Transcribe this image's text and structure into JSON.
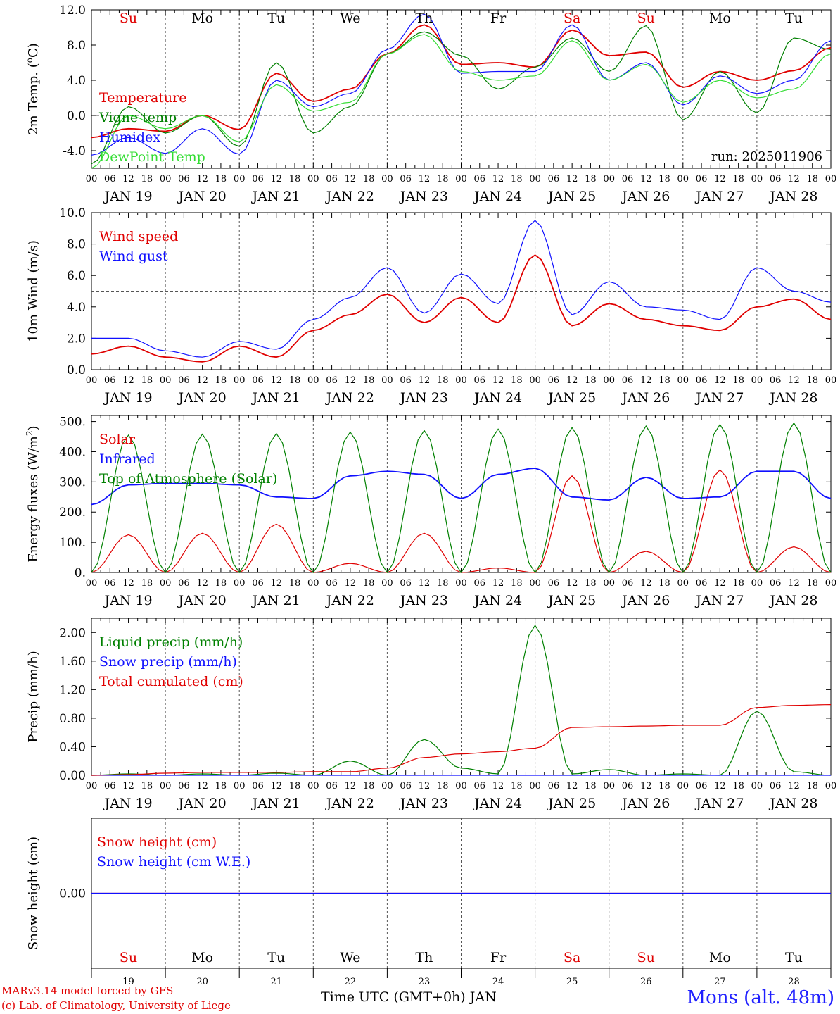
{
  "time_axis": {
    "hour_labels": [
      "00",
      "06",
      "12",
      "18"
    ],
    "final_label": "00",
    "dates": [
      "JAN 19",
      "JAN 20",
      "JAN 21",
      "JAN 22",
      "JAN 23",
      "JAN 24",
      "JAN 25",
      "JAN 26",
      "JAN 27",
      "JAN 28"
    ],
    "day_numbers": [
      "19",
      "20",
      "21",
      "22",
      "23",
      "24",
      "25",
      "26",
      "27",
      "28"
    ],
    "weekdays": [
      {
        "label": "Su",
        "weekend": true
      },
      {
        "label": "Mo",
        "weekend": false
      },
      {
        "label": "Tu",
        "weekend": false
      },
      {
        "label": "We",
        "weekend": false
      },
      {
        "label": "Th",
        "weekend": false
      },
      {
        "label": "Fr",
        "weekend": false
      },
      {
        "label": "Sa",
        "weekend": true
      },
      {
        "label": "Su",
        "weekend": true
      },
      {
        "label": "Mo",
        "weekend": false
      },
      {
        "label": "Tu",
        "weekend": false
      }
    ],
    "x_label": "Time UTC (GMT+0h) JAN"
  },
  "footer": {
    "credit_line1": "MARv3.14 model forced by GFS",
    "credit_line2": "(c) Lab. of Climatology, University of Liege",
    "location": "Mons (alt. 48m)"
  },
  "colors": {
    "red": "#e00000",
    "green": "#008000",
    "blue": "#1010ff",
    "lightgreen": "#33dd33",
    "grid": "#555555"
  },
  "chart_data": [
    {
      "type": "line",
      "ylabel": "2m Temp. (°C)",
      "ylim": [
        -6,
        12
      ],
      "yticks": [
        "-4.0",
        "0.0",
        "4.0",
        "8.0",
        "12.0"
      ],
      "ytick_values": [
        -4,
        0,
        4,
        8,
        12
      ],
      "ref_line": 0,
      "annotation": "run: 2025011906",
      "x": [
        0,
        12,
        24,
        36,
        48,
        60,
        72,
        84,
        96,
        108,
        120,
        132,
        144,
        156,
        168,
        180,
        192,
        204,
        216,
        228,
        240
      ],
      "series": [
        {
          "name": "Temperature",
          "color": "red",
          "values": [
            -2.5,
            -1.5,
            -1.8,
            0,
            -1.6,
            4.8,
            1.6,
            3,
            7,
            10.3,
            5.8,
            6,
            5.5,
            9.7,
            6.8,
            7.2,
            3.2,
            5,
            4,
            5.1,
            7.7
          ]
        },
        {
          "name": "Vigne temp",
          "color": "green",
          "values": [
            -5.5,
            1,
            -2,
            0,
            -3.5,
            6,
            -2,
            1,
            7,
            9.5,
            6.8,
            3,
            5.5,
            8.8,
            5,
            10.2,
            -0.5,
            5,
            0.3,
            8.8,
            7.5
          ]
        },
        {
          "name": "Humidex",
          "color": "blue",
          "values": [
            -4.5,
            -2.5,
            -4.3,
            -1.5,
            -4.4,
            4,
            1,
            2.5,
            7.5,
            11.5,
            4.8,
            5,
            5,
            10.3,
            4,
            6,
            1.2,
            4.5,
            2.5,
            4,
            8.5
          ]
        },
        {
          "name": "DewPoint Temp",
          "color": "lightgreen",
          "values": [
            -6,
            0,
            -1.5,
            0,
            -3,
            3.5,
            0.5,
            1.5,
            7,
            9.2,
            5,
            4,
            4.5,
            8.5,
            4,
            5.8,
            1.5,
            4,
            2,
            3,
            7
          ]
        }
      ]
    },
    {
      "type": "line",
      "ylabel": "10m Wind (m/s)",
      "ylim": [
        0,
        10
      ],
      "yticks": [
        "0.0",
        "2.0",
        "4.0",
        "6.0",
        "8.0",
        "10.0"
      ],
      "ytick_values": [
        0,
        2,
        4,
        6,
        8,
        10
      ],
      "ref_line": 5,
      "x": [
        0,
        12,
        24,
        36,
        48,
        60,
        72,
        84,
        96,
        108,
        120,
        132,
        144,
        156,
        168,
        180,
        192,
        204,
        216,
        228,
        240
      ],
      "series": [
        {
          "name": "Wind speed",
          "color": "red",
          "values": [
            1,
            1.5,
            0.8,
            0.5,
            1.5,
            0.8,
            2.5,
            3.5,
            4.8,
            3,
            4.6,
            3,
            7.3,
            2.8,
            4.2,
            3.2,
            2.8,
            2.5,
            4,
            4.5,
            3.2
          ]
        },
        {
          "name": "Wind gust",
          "color": "blue",
          "values": [
            2,
            2,
            1.2,
            0.8,
            1.8,
            1.3,
            3.2,
            4.6,
            6.5,
            3.6,
            6.1,
            4.2,
            9.5,
            3.5,
            5.6,
            4,
            3.8,
            3.2,
            6.5,
            5,
            4.3
          ]
        }
      ]
    },
    {
      "type": "line",
      "ylabel": "Energy fluxes (W/m2)",
      "ylim": [
        0,
        520
      ],
      "yticks": [
        "0.",
        "100.",
        "200.",
        "300.",
        "400.",
        "500."
      ],
      "ytick_values": [
        0,
        100,
        200,
        300,
        400,
        500
      ],
      "x": [
        0,
        12,
        24,
        36,
        48,
        60,
        72,
        84,
        96,
        108,
        120,
        132,
        144,
        156,
        168,
        180,
        192,
        204,
        216,
        228,
        240
      ],
      "series": [
        {
          "name": "Solar",
          "color": "red",
          "values": [
            0,
            125,
            0,
            130,
            0,
            160,
            0,
            30,
            0,
            130,
            0,
            15,
            0,
            320,
            0,
            70,
            0,
            340,
            0,
            85,
            0
          ]
        },
        {
          "name": "Infrared",
          "color": "blue",
          "values": [
            225,
            290,
            295,
            295,
            290,
            250,
            245,
            320,
            335,
            325,
            245,
            325,
            345,
            250,
            240,
            315,
            245,
            250,
            335,
            335,
            245
          ]
        },
        {
          "name": "Top of Atmosphere (Solar)",
          "color": "green",
          "values": [
            0,
            455,
            0,
            458,
            0,
            460,
            0,
            465,
            0,
            470,
            0,
            475,
            0,
            480,
            0,
            485,
            0,
            490,
            0,
            495,
            0
          ]
        }
      ]
    },
    {
      "type": "line",
      "ylabel": "Precip (mm/h)",
      "ylim": [
        0,
        2.2
      ],
      "yticks": [
        "0.00",
        "0.40",
        "0.80",
        "1.20",
        "1.60",
        "2.00"
      ],
      "ytick_values": [
        0,
        0.4,
        0.8,
        1.2,
        1.6,
        2
      ],
      "x": [
        0,
        12,
        24,
        36,
        48,
        60,
        72,
        84,
        96,
        108,
        120,
        132,
        144,
        156,
        168,
        180,
        192,
        204,
        216,
        228,
        240
      ],
      "series": [
        {
          "name": "Liquid precip (mm/h)",
          "color": "green",
          "values": [
            0,
            0.02,
            0,
            0.02,
            0,
            0.03,
            0,
            0.2,
            0,
            0.5,
            0.1,
            0.02,
            2.1,
            0.02,
            0.08,
            0,
            0.02,
            0,
            0.9,
            0.05,
            0
          ]
        },
        {
          "name": "Snow precip (mm/h)",
          "color": "blue",
          "values": [
            0,
            0,
            0,
            0,
            0,
            0,
            0,
            0,
            0,
            0,
            0,
            0,
            0,
            0,
            0,
            0,
            0,
            0,
            0,
            0,
            0
          ]
        },
        {
          "name": "Total cumulated (cm)",
          "color": "red",
          "values": [
            0,
            0.01,
            0.03,
            0.04,
            0.04,
            0.04,
            0.05,
            0.05,
            0.1,
            0.25,
            0.3,
            0.33,
            0.38,
            0.67,
            0.68,
            0.69,
            0.7,
            0.7,
            0.95,
            0.98,
            0.99
          ]
        }
      ]
    },
    {
      "type": "line",
      "ylabel": "Snow height (cm)",
      "ylim": [
        -1,
        1
      ],
      "yticks": [
        "0.00"
      ],
      "ytick_values": [
        0
      ],
      "x": [
        0,
        240
      ],
      "series": [
        {
          "name": "Snow height (cm)",
          "color": "red",
          "values": [
            0,
            0
          ]
        },
        {
          "name": "Snow height (cm W.E.)",
          "color": "blue",
          "values": [
            0,
            0
          ]
        }
      ]
    }
  ]
}
